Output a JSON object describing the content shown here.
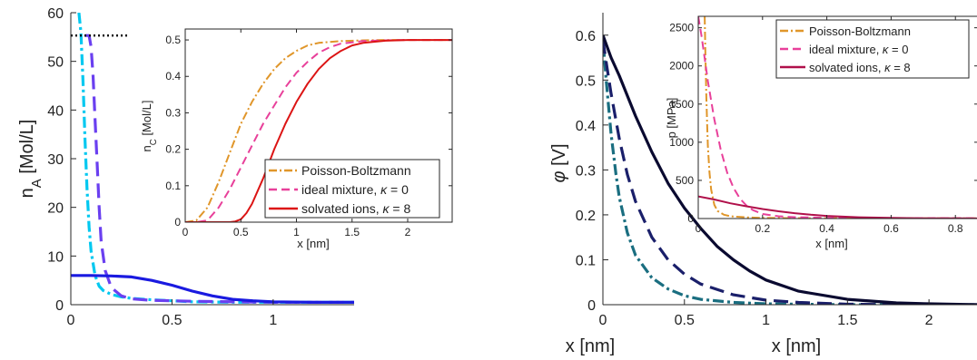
{
  "chart_data": [
    {
      "id": "left-main",
      "type": "line",
      "xlabel": "x  [nm]",
      "ylabel": "n_A  [Mol/L]",
      "xlim": [
        0,
        1.4
      ],
      "ylim": [
        0,
        60
      ],
      "xticks": [
        0,
        0.5,
        1
      ],
      "yticks": [
        0,
        10,
        20,
        30,
        40,
        50,
        60
      ],
      "grid": false,
      "series": [
        {
          "color": "#00c8f0",
          "dash": "12,4,3,4",
          "width": 3.2,
          "x": [
            0.04,
            0.05,
            0.06,
            0.07,
            0.08,
            0.09,
            0.1,
            0.12,
            0.14,
            0.16,
            0.2,
            0.25,
            0.3,
            0.4,
            0.5,
            0.6,
            0.8,
            1.0,
            1.2,
            1.4
          ],
          "y": [
            60,
            56,
            46,
            34,
            24,
            16,
            11,
            6,
            3.8,
            2.9,
            2.1,
            1.6,
            1.3,
            1.0,
            0.8,
            0.6,
            0.5,
            0.5,
            0.5,
            0.5
          ]
        },
        {
          "color": "#6a3ff0",
          "dash": "16,8",
          "width": 3.2,
          "x": [
            0.07,
            0.09,
            0.1,
            0.11,
            0.12,
            0.13,
            0.14,
            0.15,
            0.17,
            0.2,
            0.25,
            0.3,
            0.4,
            0.5,
            0.6,
            0.8,
            1.0,
            1.2,
            1.4
          ],
          "y": [
            55.3,
            55.3,
            53,
            47,
            38,
            29,
            20,
            13,
            7,
            3.5,
            1.8,
            1.2,
            0.9,
            0.8,
            0.7,
            0.6,
            0.5,
            0.5,
            0.5
          ]
        },
        {
          "color": "#1a1ae0",
          "dash": "",
          "width": 3.2,
          "x": [
            0,
            0.1,
            0.2,
            0.3,
            0.4,
            0.5,
            0.6,
            0.7,
            0.8,
            0.9,
            1.0,
            1.2,
            1.4
          ],
          "y": [
            6,
            6,
            5.9,
            5.7,
            5.0,
            4.0,
            2.8,
            1.8,
            1.1,
            0.8,
            0.6,
            0.5,
            0.5
          ]
        },
        {
          "color": "#000000",
          "dash": "2,3",
          "width": 2.4,
          "x": [
            0,
            0.28
          ],
          "y": [
            55.3,
            55.3
          ]
        }
      ]
    },
    {
      "id": "left-inset",
      "type": "line",
      "xlabel": "x  [nm]",
      "ylabel": "n_C  [Mol/L]",
      "xlim": [
        0,
        2.4
      ],
      "ylim": [
        0,
        0.53
      ],
      "xticks": [
        0,
        0.5,
        1,
        1.5,
        2
      ],
      "yticks": [
        0,
        0.1,
        0.2,
        0.3,
        0.4,
        0.5
      ],
      "legend": "bottom-right",
      "series": [
        {
          "name": "Poisson-Boltzmann",
          "color": "#e0962a",
          "dash": "9,3,2,3",
          "width": 2,
          "x": [
            0,
            0.1,
            0.2,
            0.3,
            0.4,
            0.5,
            0.6,
            0.7,
            0.8,
            0.9,
            1.0,
            1.1,
            1.2,
            1.4,
            1.6,
            1.8,
            2.0,
            2.4
          ],
          "y": [
            0,
            0.005,
            0.04,
            0.11,
            0.19,
            0.27,
            0.33,
            0.38,
            0.42,
            0.45,
            0.47,
            0.485,
            0.492,
            0.497,
            0.499,
            0.5,
            0.5,
            0.5
          ]
        },
        {
          "name": "ideal mixture, κ = 0",
          "color": "#e8409a",
          "dash": "9,5",
          "width": 2,
          "x": [
            0,
            0.1,
            0.2,
            0.3,
            0.4,
            0.5,
            0.6,
            0.7,
            0.8,
            0.9,
            1.0,
            1.1,
            1.2,
            1.3,
            1.4,
            1.6,
            1.8,
            2.0,
            2.4
          ],
          "y": [
            0,
            0,
            0.005,
            0.04,
            0.09,
            0.15,
            0.21,
            0.27,
            0.32,
            0.37,
            0.41,
            0.44,
            0.465,
            0.48,
            0.49,
            0.497,
            0.499,
            0.5,
            0.5
          ]
        },
        {
          "name": "solvated ions, κ = 8",
          "color": "#dc1414",
          "dash": "",
          "width": 2,
          "x": [
            0,
            0.3,
            0.4,
            0.45,
            0.5,
            0.55,
            0.6,
            0.7,
            0.8,
            0.9,
            1.0,
            1.1,
            1.2,
            1.3,
            1.4,
            1.5,
            1.6,
            1.8,
            2.0,
            2.4
          ],
          "y": [
            0,
            0,
            0,
            0.002,
            0.008,
            0.025,
            0.05,
            0.12,
            0.2,
            0.27,
            0.33,
            0.38,
            0.42,
            0.45,
            0.47,
            0.485,
            0.492,
            0.498,
            0.5,
            0.5
          ]
        }
      ]
    },
    {
      "id": "right-main",
      "type": "line",
      "xlabel": "x  [nm]",
      "ylabel": "φ  [V]",
      "xlim": [
        0,
        2.3
      ],
      "ylim": [
        0,
        0.65
      ],
      "xticks": [
        0,
        0.5,
        1,
        1.5,
        2
      ],
      "yticks": [
        0,
        0.1,
        0.2,
        0.3,
        0.4,
        0.5,
        0.6
      ],
      "grid": false,
      "series": [
        {
          "color": "#1a6e80",
          "dash": "12,4,3,4",
          "width": 3.2,
          "x": [
            0,
            0.02,
            0.05,
            0.08,
            0.1,
            0.15,
            0.2,
            0.3,
            0.4,
            0.5,
            0.6,
            0.8,
            1.0,
            1.2,
            1.5,
            2.0,
            2.3
          ],
          "y": [
            0.59,
            0.5,
            0.38,
            0.29,
            0.24,
            0.16,
            0.11,
            0.06,
            0.035,
            0.02,
            0.012,
            0.005,
            0.002,
            0.001,
            0,
            0,
            0
          ]
        },
        {
          "color": "#1a1f6a",
          "dash": "16,8",
          "width": 3.2,
          "x": [
            0,
            0.02,
            0.05,
            0.08,
            0.1,
            0.15,
            0.2,
            0.3,
            0.4,
            0.5,
            0.6,
            0.8,
            1.0,
            1.2,
            1.5,
            2.0,
            2.3
          ],
          "y": [
            0.59,
            0.54,
            0.47,
            0.41,
            0.37,
            0.29,
            0.23,
            0.15,
            0.1,
            0.068,
            0.046,
            0.022,
            0.01,
            0.005,
            0.001,
            0,
            0
          ]
        },
        {
          "color": "#0a0a30",
          "dash": "",
          "width": 3.2,
          "x": [
            0,
            0.05,
            0.1,
            0.2,
            0.3,
            0.4,
            0.5,
            0.6,
            0.7,
            0.8,
            0.9,
            1.0,
            1.2,
            1.5,
            1.8,
            2.0,
            2.3
          ],
          "y": [
            0.6,
            0.55,
            0.51,
            0.42,
            0.34,
            0.27,
            0.215,
            0.17,
            0.13,
            0.1,
            0.075,
            0.055,
            0.03,
            0.012,
            0.004,
            0.002,
            0
          ]
        }
      ]
    },
    {
      "id": "right-inset",
      "type": "line",
      "xlabel": "x  [nm]",
      "ylabel": "p  [MPa]",
      "xlim": [
        0,
        0.87
      ],
      "ylim": [
        0,
        2650
      ],
      "xticks": [
        0,
        0.2,
        0.4,
        0.6,
        0.8
      ],
      "yticks": [
        0,
        500,
        1000,
        1500,
        2000,
        2500
      ],
      "legend": "top-right",
      "series": [
        {
          "name": "Poisson-Boltzmann",
          "color": "#e0962a",
          "dash": "9,3,2,3",
          "width": 2,
          "x": [
            0.02,
            0.022,
            0.025,
            0.028,
            0.03,
            0.035,
            0.04,
            0.05,
            0.06,
            0.08,
            0.1,
            0.15,
            0.2,
            0.3,
            0.5,
            0.87
          ],
          "y": [
            2650,
            2200,
            1600,
            1200,
            950,
            600,
            380,
            180,
            100,
            50,
            30,
            15,
            8,
            5,
            3,
            2
          ]
        },
        {
          "name": "ideal mixture, κ = 0",
          "color": "#e8409a",
          "dash": "9,5",
          "width": 2,
          "x": [
            0,
            0.01,
            0.02,
            0.03,
            0.05,
            0.07,
            0.09,
            0.11,
            0.13,
            0.15,
            0.17,
            0.2,
            0.25,
            0.3,
            0.4,
            0.5,
            0.87
          ],
          "y": [
            2650,
            2400,
            2100,
            1800,
            1300,
            900,
            600,
            400,
            260,
            170,
            110,
            60,
            30,
            18,
            10,
            6,
            3
          ]
        },
        {
          "name": "solvated ions, κ = 8",
          "color": "#b0104a",
          "dash": "",
          "width": 2,
          "x": [
            0,
            0.05,
            0.1,
            0.15,
            0.2,
            0.25,
            0.3,
            0.35,
            0.4,
            0.45,
            0.5,
            0.6,
            0.7,
            0.8,
            0.87
          ],
          "y": [
            290,
            250,
            200,
            160,
            125,
            95,
            70,
            50,
            35,
            25,
            17,
            8,
            4,
            2,
            1
          ]
        }
      ]
    }
  ]
}
